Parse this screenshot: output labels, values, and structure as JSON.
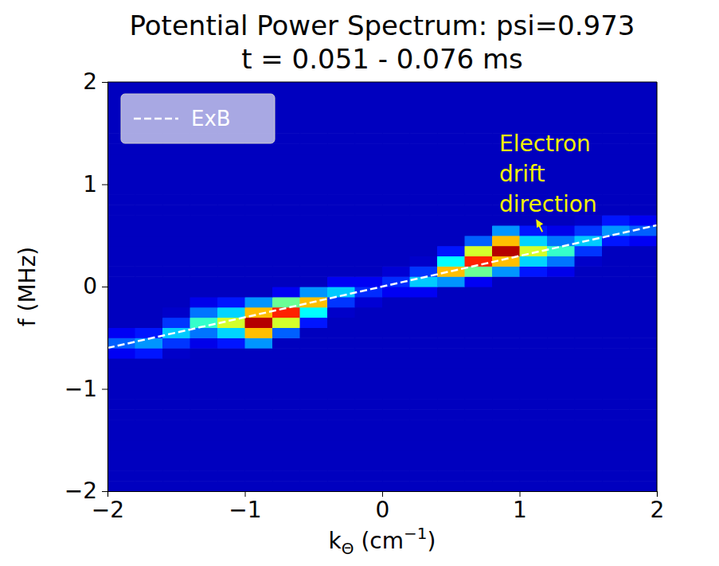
{
  "chart_data": {
    "type": "heatmap",
    "title": "Potential Power Spectrum: psi=0.973",
    "subtitle": "t = 0.051 - 0.076 ms",
    "x_label": "kΘ (cm−1)",
    "y_label": "f (MHz)",
    "xlim": [
      -2,
      2
    ],
    "ylim": [
      -2,
      2
    ],
    "xticks": [
      {
        "value": -2,
        "label": "−2"
      },
      {
        "value": -1,
        "label": "−1"
      },
      0,
      1,
      2
    ],
    "yticks": [
      {
        "value": -2,
        "label": "−2"
      },
      {
        "value": -1,
        "label": "−1"
      },
      0,
      1,
      2
    ],
    "grid": false,
    "legend": "upper left",
    "color": "jet",
    "zlim": [
      0.04,
      1
    ],
    "x": [
      -1.9,
      -1.7,
      -1.5,
      -1.3,
      -1.1,
      -0.9,
      -0.7,
      -0.5,
      -0.3,
      -0.1,
      0.1,
      0.3,
      0.5,
      0.7,
      0.9,
      1.1,
      1.3,
      1.5,
      1.7,
      1.9
    ],
    "y": [
      -1.95,
      -1.85,
      -1.75,
      -1.65,
      -1.55,
      -1.45,
      -1.35,
      -1.25,
      -1.15,
      -1.05,
      -0.95,
      -0.85,
      -0.75,
      -0.65,
      -0.55,
      -0.45,
      -0.35,
      -0.25,
      -0.15,
      -0.05,
      0.05,
      0.15,
      0.25,
      0.35,
      0.45,
      0.55,
      0.65,
      0.75,
      0.85,
      0.95,
      1.05,
      1.15,
      1.25,
      1.35,
      1.45,
      1.55,
      1.65,
      1.75,
      1.85,
      1.95
    ],
    "z": [
      [
        0.1,
        0.1,
        0.1,
        0.1,
        0.1,
        0.1,
        0.1,
        0.1,
        0.1,
        0.1,
        0.1,
        0.1,
        0.1,
        0.1,
        0.1,
        0.1,
        0.1,
        0.1,
        0.1,
        0.1
      ],
      [
        0.1,
        0.1,
        0.1,
        0.1,
        0.1,
        0.1,
        0.1,
        0.1,
        0.1,
        0.1,
        0.1,
        0.1,
        0.1,
        0.1,
        0.1,
        0.1,
        0.1,
        0.1,
        0.1,
        0.1
      ],
      [
        0.1,
        0.1,
        0.1,
        0.1,
        0.1,
        0.1,
        0.1,
        0.1,
        0.1,
        0.1,
        0.1,
        0.1,
        0.1,
        0.1,
        0.1,
        0.1,
        0.1,
        0.1,
        0.1,
        0.1
      ],
      [
        0.1,
        0.1,
        0.1,
        0.1,
        0.1,
        0.1,
        0.1,
        0.1,
        0.1,
        0.1,
        0.1,
        0.1,
        0.1,
        0.1,
        0.1,
        0.1,
        0.1,
        0.1,
        0.1,
        0.1
      ],
      [
        0.1,
        0.1,
        0.1,
        0.1,
        0.1,
        0.1,
        0.1,
        0.1,
        0.1,
        0.1,
        0.1,
        0.1,
        0.1,
        0.1,
        0.1,
        0.1,
        0.1,
        0.1,
        0.1,
        0.1
      ],
      [
        0.1,
        0.1,
        0.1,
        0.1,
        0.1,
        0.1,
        0.1,
        0.1,
        0.1,
        0.1,
        0.1,
        0.1,
        0.1,
        0.1,
        0.1,
        0.1,
        0.1,
        0.1,
        0.1,
        0.1
      ],
      [
        0.1,
        0.1,
        0.1,
        0.1,
        0.1,
        0.1,
        0.1,
        0.1,
        0.1,
        0.1,
        0.1,
        0.1,
        0.1,
        0.1,
        0.1,
        0.1,
        0.1,
        0.1,
        0.1,
        0.1
      ],
      [
        0.1,
        0.1,
        0.1,
        0.1,
        0.1,
        0.1,
        0.1,
        0.1,
        0.1,
        0.1,
        0.1,
        0.1,
        0.1,
        0.1,
        0.1,
        0.1,
        0.1,
        0.1,
        0.1,
        0.1
      ],
      [
        0.1,
        0.1,
        0.1,
        0.1,
        0.1,
        0.1,
        0.1,
        0.1,
        0.1,
        0.1,
        0.1,
        0.1,
        0.1,
        0.1,
        0.1,
        0.1,
        0.1,
        0.1,
        0.1,
        0.1
      ],
      [
        0.1,
        0.1,
        0.1,
        0.1,
        0.1,
        0.1,
        0.1,
        0.1,
        0.1,
        0.1,
        0.1,
        0.1,
        0.1,
        0.1,
        0.1,
        0.1,
        0.1,
        0.1,
        0.1,
        0.1
      ],
      [
        0.1,
        0.1,
        0.1,
        0.1,
        0.1,
        0.1,
        0.1,
        0.1,
        0.1,
        0.1,
        0.1,
        0.1,
        0.1,
        0.1,
        0.1,
        0.1,
        0.1,
        0.1,
        0.1,
        0.1
      ],
      [
        0.1,
        0.1,
        0.1,
        0.1,
        0.1,
        0.1,
        0.1,
        0.1,
        0.1,
        0.1,
        0.1,
        0.1,
        0.1,
        0.1,
        0.1,
        0.1,
        0.1,
        0.1,
        0.1,
        0.1
      ],
      [
        0.1,
        0.1,
        0.1,
        0.1,
        0.1,
        0.1,
        0.1,
        0.1,
        0.1,
        0.1,
        0.1,
        0.1,
        0.1,
        0.1,
        0.1,
        0.1,
        0.1,
        0.1,
        0.1,
        0.1
      ],
      [
        0.15,
        0.18,
        0.11,
        0.1,
        0.1,
        0.1,
        0.1,
        0.1,
        0.1,
        0.1,
        0.1,
        0.1,
        0.1,
        0.1,
        0.1,
        0.1,
        0.1,
        0.1,
        0.1,
        0.1
      ],
      [
        0.25,
        0.3,
        0.21,
        0.14,
        0.18,
        0.3,
        0.1,
        0.1,
        0.1,
        0.1,
        0.1,
        0.1,
        0.1,
        0.1,
        0.1,
        0.1,
        0.1,
        0.1,
        0.1,
        0.1
      ],
      [
        0.15,
        0.18,
        0.35,
        0.27,
        0.36,
        0.7,
        0.25,
        0.1,
        0.1,
        0.1,
        0.1,
        0.1,
        0.1,
        0.1,
        0.1,
        0.1,
        0.1,
        0.1,
        0.1,
        0.1
      ],
      [
        0.1,
        0.1,
        0.21,
        0.45,
        0.6,
        0.95,
        0.6,
        0.18,
        0.1,
        0.1,
        0.1,
        0.1,
        0.1,
        0.1,
        0.1,
        0.1,
        0.1,
        0.1,
        0.1,
        0.1
      ],
      [
        0.1,
        0.1,
        0.11,
        0.27,
        0.36,
        0.7,
        0.85,
        0.4,
        0.11,
        0.1,
        0.1,
        0.1,
        0.1,
        0.1,
        0.1,
        0.1,
        0.1,
        0.1,
        0.1,
        0.1
      ],
      [
        0.1,
        0.1,
        0.1,
        0.14,
        0.18,
        0.3,
        0.5,
        0.7,
        0.21,
        0.12,
        0.1,
        0.1,
        0.1,
        0.1,
        0.1,
        0.1,
        0.1,
        0.1,
        0.1,
        0.1
      ],
      [
        0.1,
        0.1,
        0.1,
        0.1,
        0.1,
        0.1,
        0.15,
        0.3,
        0.35,
        0.2,
        0.15,
        0.15,
        0.1,
        0.1,
        0.1,
        0.1,
        0.1,
        0.1,
        0.1,
        0.1
      ],
      [
        0.1,
        0.1,
        0.1,
        0.1,
        0.1,
        0.1,
        0.1,
        0.1,
        0.15,
        0.15,
        0.2,
        0.35,
        0.3,
        0.15,
        0.1,
        0.1,
        0.1,
        0.1,
        0.1,
        0.1
      ],
      [
        0.1,
        0.1,
        0.1,
        0.1,
        0.1,
        0.1,
        0.1,
        0.1,
        0.1,
        0.1,
        0.12,
        0.21,
        0.7,
        0.5,
        0.3,
        0.18,
        0.14,
        0.1,
        0.1,
        0.1
      ],
      [
        0.1,
        0.1,
        0.1,
        0.1,
        0.1,
        0.1,
        0.1,
        0.1,
        0.1,
        0.1,
        0.1,
        0.11,
        0.4,
        0.85,
        0.7,
        0.36,
        0.27,
        0.11,
        0.1,
        0.1
      ],
      [
        0.1,
        0.1,
        0.1,
        0.1,
        0.1,
        0.1,
        0.1,
        0.1,
        0.1,
        0.1,
        0.1,
        0.1,
        0.18,
        0.6,
        0.95,
        0.6,
        0.45,
        0.21,
        0.1,
        0.1
      ],
      [
        0.1,
        0.1,
        0.1,
        0.1,
        0.1,
        0.1,
        0.1,
        0.1,
        0.1,
        0.1,
        0.1,
        0.1,
        0.1,
        0.25,
        0.7,
        0.36,
        0.27,
        0.35,
        0.18,
        0.15
      ],
      [
        0.1,
        0.1,
        0.1,
        0.1,
        0.1,
        0.1,
        0.1,
        0.1,
        0.1,
        0.1,
        0.1,
        0.1,
        0.1,
        0.1,
        0.3,
        0.18,
        0.14,
        0.21,
        0.3,
        0.25
      ],
      [
        0.1,
        0.1,
        0.1,
        0.1,
        0.1,
        0.1,
        0.1,
        0.1,
        0.1,
        0.1,
        0.1,
        0.1,
        0.1,
        0.1,
        0.1,
        0.1,
        0.1,
        0.11,
        0.18,
        0.15
      ],
      [
        0.1,
        0.1,
        0.1,
        0.1,
        0.1,
        0.1,
        0.1,
        0.1,
        0.1,
        0.1,
        0.1,
        0.1,
        0.1,
        0.1,
        0.1,
        0.1,
        0.1,
        0.1,
        0.1,
        0.1
      ],
      [
        0.1,
        0.1,
        0.1,
        0.1,
        0.1,
        0.1,
        0.1,
        0.1,
        0.1,
        0.1,
        0.1,
        0.1,
        0.1,
        0.1,
        0.1,
        0.1,
        0.1,
        0.1,
        0.1,
        0.1
      ],
      [
        0.1,
        0.1,
        0.1,
        0.1,
        0.1,
        0.1,
        0.1,
        0.1,
        0.1,
        0.1,
        0.1,
        0.1,
        0.1,
        0.1,
        0.1,
        0.1,
        0.1,
        0.1,
        0.1,
        0.1
      ],
      [
        0.1,
        0.1,
        0.1,
        0.1,
        0.1,
        0.1,
        0.1,
        0.1,
        0.1,
        0.1,
        0.1,
        0.1,
        0.1,
        0.1,
        0.1,
        0.1,
        0.1,
        0.1,
        0.1,
        0.1
      ],
      [
        0.1,
        0.1,
        0.1,
        0.1,
        0.1,
        0.1,
        0.1,
        0.1,
        0.1,
        0.1,
        0.1,
        0.1,
        0.1,
        0.1,
        0.1,
        0.1,
        0.1,
        0.1,
        0.1,
        0.1
      ],
      [
        0.1,
        0.1,
        0.1,
        0.1,
        0.1,
        0.1,
        0.1,
        0.1,
        0.1,
        0.1,
        0.1,
        0.1,
        0.1,
        0.1,
        0.1,
        0.1,
        0.1,
        0.1,
        0.1,
        0.1
      ],
      [
        0.1,
        0.1,
        0.1,
        0.1,
        0.1,
        0.1,
        0.1,
        0.1,
        0.1,
        0.1,
        0.1,
        0.1,
        0.1,
        0.1,
        0.1,
        0.1,
        0.1,
        0.1,
        0.1,
        0.1
      ],
      [
        0.1,
        0.1,
        0.1,
        0.1,
        0.1,
        0.1,
        0.1,
        0.1,
        0.1,
        0.1,
        0.1,
        0.1,
        0.1,
        0.1,
        0.1,
        0.1,
        0.1,
        0.1,
        0.1,
        0.1
      ],
      [
        0.1,
        0.1,
        0.1,
        0.1,
        0.1,
        0.1,
        0.1,
        0.1,
        0.1,
        0.1,
        0.1,
        0.1,
        0.1,
        0.1,
        0.1,
        0.1,
        0.1,
        0.1,
        0.1,
        0.1
      ],
      [
        0.1,
        0.1,
        0.1,
        0.1,
        0.1,
        0.1,
        0.1,
        0.1,
        0.1,
        0.1,
        0.1,
        0.1,
        0.1,
        0.1,
        0.1,
        0.1,
        0.1,
        0.1,
        0.1,
        0.1
      ],
      [
        0.1,
        0.1,
        0.1,
        0.1,
        0.1,
        0.1,
        0.1,
        0.1,
        0.1,
        0.1,
        0.1,
        0.1,
        0.1,
        0.1,
        0.1,
        0.1,
        0.1,
        0.1,
        0.1,
        0.1
      ],
      [
        0.1,
        0.1,
        0.1,
        0.1,
        0.1,
        0.1,
        0.1,
        0.1,
        0.1,
        0.1,
        0.1,
        0.1,
        0.1,
        0.1,
        0.1,
        0.1,
        0.1,
        0.1,
        0.1,
        0.1
      ],
      [
        0.1,
        0.1,
        0.1,
        0.1,
        0.1,
        0.1,
        0.1,
        0.1,
        0.1,
        0.1,
        0.1,
        0.1,
        0.1,
        0.1,
        0.1,
        0.1,
        0.1,
        0.1,
        0.1,
        0.1
      ]
    ],
    "series": [
      {
        "name": "ExB",
        "type": "line",
        "color": "#ffffff",
        "line_style": "dashed",
        "x": [
          -2,
          2
        ],
        "values": [
          -0.6,
          0.6
        ]
      }
    ],
    "annotations": [
      {
        "text": "Electron drift direction",
        "color": "#f2f200"
      }
    ]
  }
}
